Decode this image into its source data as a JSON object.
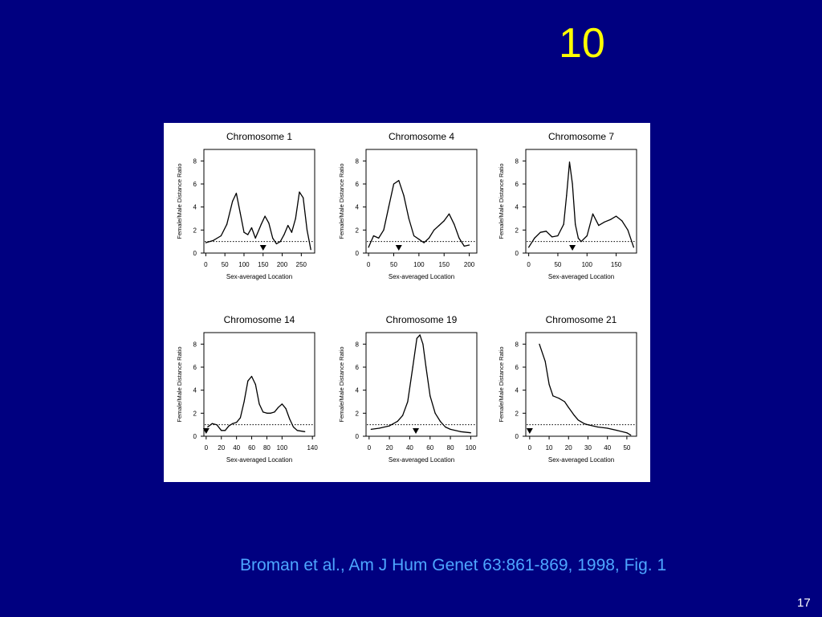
{
  "slide": {
    "title": "10",
    "citation": "Broman et al., Am J Hum Genet 63:861-869, 1998, Fig. 1",
    "page_number": "17"
  },
  "colors": {
    "background": "#000080",
    "title": "#ffff00",
    "citation": "#4da6ff",
    "page_number": "#ffffff",
    "figure_background": "#ffffff",
    "curve": "#000000"
  },
  "chart_data": [
    {
      "type": "line",
      "title": "Chromosome 1",
      "xlabel": "Sex-averaged Location",
      "ylabel": "Female/Male Distance Ratio",
      "xticks": [
        0,
        50,
        100,
        150,
        200,
        250
      ],
      "yticks": [
        0,
        2,
        4,
        6,
        8
      ],
      "xlim": [
        -5,
        285
      ],
      "ylim": [
        0,
        9
      ],
      "reference_line": 1,
      "marker_x": 150,
      "x": [
        0,
        20,
        40,
        55,
        70,
        80,
        90,
        100,
        110,
        120,
        130,
        145,
        155,
        165,
        175,
        185,
        195,
        205,
        215,
        225,
        235,
        245,
        255,
        265,
        275
      ],
      "y": [
        0.9,
        1.1,
        1.5,
        2.5,
        4.5,
        5.2,
        3.5,
        1.8,
        1.6,
        2.2,
        1.3,
        2.5,
        3.2,
        2.6,
        1.3,
        0.8,
        1.0,
        1.6,
        2.4,
        1.8,
        3.0,
        5.3,
        4.8,
        2.0,
        0.3
      ]
    },
    {
      "type": "line",
      "title": "Chromosome 4",
      "xlabel": "Sex-averaged Location",
      "ylabel": "Female/Male Distance Ratio",
      "xticks": [
        0,
        50,
        100,
        150,
        200
      ],
      "yticks": [
        0,
        2,
        4,
        6,
        8
      ],
      "xlim": [
        -5,
        215
      ],
      "ylim": [
        0,
        9
      ],
      "reference_line": 1,
      "marker_x": 60,
      "x": [
        0,
        10,
        20,
        30,
        40,
        50,
        60,
        70,
        80,
        90,
        100,
        110,
        120,
        130,
        140,
        150,
        160,
        170,
        180,
        190,
        200
      ],
      "y": [
        0.5,
        1.5,
        1.3,
        2.0,
        4.0,
        6.0,
        6.3,
        5.0,
        3.0,
        1.5,
        1.2,
        0.9,
        1.3,
        2.0,
        2.4,
        2.8,
        3.4,
        2.5,
        1.3,
        0.6,
        0.7
      ]
    },
    {
      "type": "line",
      "title": "Chromosome 7",
      "xlabel": "Sex-averaged Location",
      "ylabel": "Female/Male Distance Ratio",
      "xticks": [
        0,
        50,
        100,
        150
      ],
      "yticks": [
        0,
        2,
        4,
        6,
        8
      ],
      "xlim": [
        -5,
        185
      ],
      "ylim": [
        0,
        9
      ],
      "reference_line": 1,
      "marker_x": 75,
      "x": [
        0,
        10,
        20,
        30,
        40,
        50,
        60,
        65,
        70,
        75,
        80,
        85,
        90,
        100,
        110,
        120,
        130,
        140,
        150,
        160,
        170,
        180
      ],
      "y": [
        0.5,
        1.3,
        1.8,
        1.9,
        1.4,
        1.5,
        2.5,
        5.0,
        7.9,
        6.0,
        2.5,
        1.3,
        1.0,
        1.5,
        3.4,
        2.4,
        2.7,
        2.9,
        3.2,
        2.8,
        2.0,
        0.5
      ]
    },
    {
      "type": "line",
      "title": "Chromosome 14",
      "xlabel": "Sex-averaged Location",
      "ylabel": "Female/Male Distance Ratio",
      "xticks": [
        0,
        20,
        40,
        60,
        80,
        100,
        140
      ],
      "yticks": [
        0,
        2,
        4,
        6,
        8
      ],
      "xlim": [
        -3,
        143
      ],
      "ylim": [
        0,
        9
      ],
      "reference_line": 1,
      "marker_x": 0,
      "x": [
        2,
        8,
        14,
        20,
        25,
        30,
        35,
        40,
        45,
        50,
        55,
        60,
        65,
        70,
        75,
        80,
        85,
        90,
        95,
        100,
        105,
        110,
        115,
        120,
        130
      ],
      "y": [
        0.8,
        1.1,
        1.0,
        0.5,
        0.5,
        0.9,
        1.1,
        1.2,
        1.6,
        3.0,
        4.8,
        5.2,
        4.5,
        2.8,
        2.1,
        2.0,
        2.0,
        2.1,
        2.5,
        2.8,
        2.4,
        1.5,
        0.8,
        0.5,
        0.4
      ]
    },
    {
      "type": "line",
      "title": "Chromosome 19",
      "xlabel": "Sex-averaged Location",
      "ylabel": "Female/Male Distance Ratio",
      "xticks": [
        0,
        20,
        40,
        60,
        80,
        100
      ],
      "yticks": [
        0,
        2,
        4,
        6,
        8
      ],
      "xlim": [
        -3,
        106
      ],
      "ylim": [
        0,
        9
      ],
      "reference_line": 1,
      "marker_x": 46,
      "x": [
        2,
        10,
        20,
        28,
        33,
        38,
        43,
        47,
        50,
        53,
        56,
        60,
        65,
        70,
        75,
        80,
        90,
        100
      ],
      "y": [
        0.6,
        0.7,
        0.9,
        1.3,
        1.8,
        3.0,
        6.0,
        8.5,
        8.8,
        8.0,
        6.0,
        3.5,
        2.0,
        1.3,
        0.8,
        0.6,
        0.4,
        0.3
      ]
    },
    {
      "type": "line",
      "title": "Chromosome 21",
      "xlabel": "Sex-averaged Location",
      "ylabel": "Female/Male Distance Ratio",
      "xticks": [
        0,
        10,
        20,
        30,
        40,
        50
      ],
      "yticks": [
        0,
        2,
        4,
        6,
        8
      ],
      "xlim": [
        -2,
        55
      ],
      "ylim": [
        0,
        9
      ],
      "reference_line": 1,
      "marker_x": 0,
      "x": [
        5,
        8,
        10,
        12,
        15,
        18,
        20,
        23,
        25,
        28,
        30,
        35,
        40,
        45,
        50,
        52
      ],
      "y": [
        8.0,
        6.5,
        4.5,
        3.5,
        3.3,
        3.0,
        2.5,
        1.8,
        1.4,
        1.1,
        1.0,
        0.8,
        0.7,
        0.5,
        0.3,
        0.1
      ]
    }
  ]
}
